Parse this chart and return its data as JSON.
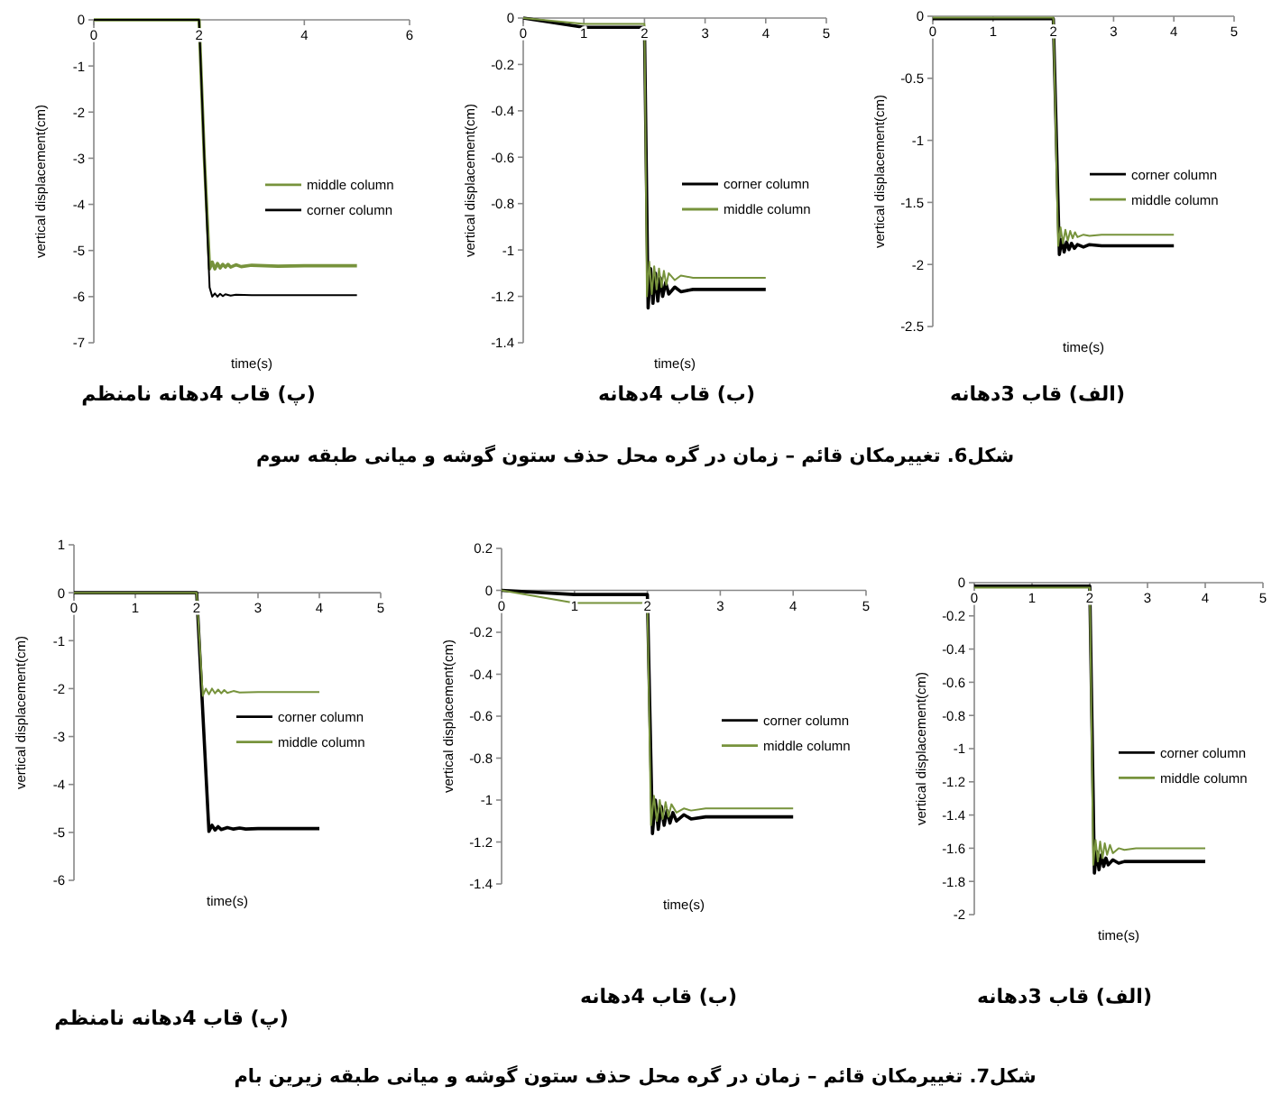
{
  "chart_data": [
    {
      "type": "line",
      "title": "(پ) قاب 4دهانه نامنظم",
      "xlabel": "time(s)",
      "ylabel": "vertical displacement(cm)",
      "xlim": [
        0,
        6
      ],
      "ylim": [
        -7,
        0
      ],
      "xticks": [
        0,
        2,
        4,
        6
      ],
      "yticks": [
        0,
        -1,
        -2,
        -3,
        -4,
        -5,
        -6,
        -7
      ],
      "legend": "right",
      "series": [
        {
          "name": "middle column",
          "color": "#77933c",
          "x": [
            0,
            2.0,
            2.1,
            2.2,
            2.25,
            2.3,
            2.35,
            2.4,
            2.45,
            2.5,
            2.55,
            2.6,
            2.7,
            2.8,
            3.0,
            3.5,
            4.0,
            5.0
          ],
          "values": [
            0,
            0,
            -3.0,
            -5.4,
            -5.25,
            -5.4,
            -5.28,
            -5.38,
            -5.3,
            -5.36,
            -5.3,
            -5.36,
            -5.31,
            -5.35,
            -5.32,
            -5.34,
            -5.33,
            -5.33
          ]
        },
        {
          "name": "corner column",
          "color": "#000000",
          "x": [
            0,
            2.0,
            2.1,
            2.2,
            2.25,
            2.3,
            2.35,
            2.4,
            2.45,
            2.5,
            2.6,
            2.7,
            3.0,
            5.0
          ],
          "values": [
            0,
            0,
            -3.0,
            -5.8,
            -6.0,
            -5.93,
            -6.0,
            -5.94,
            -5.99,
            -5.95,
            -5.98,
            -5.96,
            -5.97,
            -5.97
          ]
        }
      ]
    },
    {
      "type": "line",
      "title": "(ب) قاب 4دهانه",
      "xlabel": "time(s)",
      "ylabel": "vertical displacement(cm)",
      "xlim": [
        0,
        5
      ],
      "ylim": [
        -1.4,
        0
      ],
      "xticks": [
        0,
        1,
        2,
        3,
        4,
        5
      ],
      "yticks": [
        0,
        -0.2,
        -0.4,
        -0.6,
        -0.8,
        -1,
        -1.2,
        -1.4
      ],
      "legend": "right",
      "annotations": [
        "شکل6. تغییرمکان قائم – زمان در گره محل حذف ستون گوشه و میانی طبقه سوم"
      ],
      "series": [
        {
          "name": "corner column",
          "color": "#000000",
          "x": [
            0,
            1,
            2.0,
            2.06,
            2.1,
            2.14,
            2.18,
            2.22,
            2.26,
            2.3,
            2.35,
            2.4,
            2.5,
            2.6,
            2.8,
            4.0
          ],
          "values": [
            0,
            -0.04,
            -0.04,
            -1.25,
            -1.08,
            -1.23,
            -1.1,
            -1.22,
            -1.12,
            -1.2,
            -1.14,
            -1.19,
            -1.16,
            -1.18,
            -1.17,
            -1.17
          ]
        },
        {
          "name": "middle column",
          "color": "#77933c",
          "x": [
            0,
            1,
            2.0,
            2.04,
            2.08,
            2.12,
            2.16,
            2.2,
            2.24,
            2.28,
            2.32,
            2.36,
            2.4,
            2.5,
            2.6,
            2.8,
            4.0
          ],
          "values": [
            0,
            -0.025,
            -0.025,
            -1.2,
            -1.05,
            -1.19,
            -1.07,
            -1.17,
            -1.08,
            -1.16,
            -1.09,
            -1.15,
            -1.1,
            -1.13,
            -1.11,
            -1.12,
            -1.12
          ]
        }
      ]
    },
    {
      "type": "line",
      "title": "(الف) قاب 3دهانه",
      "xlabel": "time(s)",
      "ylabel": "vertical displacement(cm)",
      "xlim": [
        0,
        5
      ],
      "ylim": [
        -2.5,
        0
      ],
      "xticks": [
        0,
        1,
        2,
        3,
        4,
        5
      ],
      "yticks": [
        0,
        -0.5,
        -1,
        -1.5,
        -2,
        -2.5
      ],
      "legend": "right",
      "series": [
        {
          "name": "corner column",
          "color": "#000000",
          "x": [
            0,
            2.0,
            2.1,
            2.14,
            2.18,
            2.22,
            2.26,
            2.3,
            2.35,
            2.4,
            2.5,
            2.6,
            2.8,
            4.0
          ],
          "values": [
            -0.02,
            -0.02,
            -1.92,
            -1.8,
            -1.9,
            -1.82,
            -1.88,
            -1.83,
            -1.87,
            -1.84,
            -1.86,
            -1.84,
            -1.85,
            -1.85
          ]
        },
        {
          "name": "middle column",
          "color": "#77933c",
          "x": [
            0,
            2.0,
            2.08,
            2.12,
            2.16,
            2.2,
            2.24,
            2.28,
            2.32,
            2.36,
            2.4,
            2.5,
            2.6,
            2.8,
            4.0
          ],
          "values": [
            -0.01,
            -0.01,
            -1.85,
            -1.7,
            -1.83,
            -1.72,
            -1.81,
            -1.73,
            -1.79,
            -1.74,
            -1.78,
            -1.76,
            -1.77,
            -1.76,
            -1.76
          ]
        }
      ]
    },
    {
      "type": "line",
      "title": "(پ) قاب 4دهانه نامنظم",
      "xlabel": "time(s)",
      "ylabel": "vertical displacement(cm)",
      "xlim": [
        0,
        5
      ],
      "ylim": [
        -6,
        1
      ],
      "xticks": [
        0,
        1,
        2,
        3,
        4,
        5
      ],
      "yticks": [
        1,
        0,
        -1,
        -2,
        -3,
        -4,
        -5,
        -6
      ],
      "legend": "right",
      "series": [
        {
          "name": "corner column",
          "color": "#000000",
          "x": [
            0,
            2.0,
            2.1,
            2.2,
            2.25,
            2.3,
            2.35,
            2.4,
            2.5,
            2.6,
            2.7,
            2.8,
            3.0,
            4.0
          ],
          "values": [
            0,
            0,
            -2.5,
            -4.98,
            -4.85,
            -4.95,
            -4.88,
            -4.94,
            -4.9,
            -4.93,
            -4.91,
            -4.93,
            -4.92,
            -4.92
          ]
        },
        {
          "name": "middle column",
          "color": "#77933c",
          "x": [
            0,
            2.0,
            2.1,
            2.15,
            2.2,
            2.25,
            2.3,
            2.35,
            2.4,
            2.45,
            2.5,
            2.6,
            2.7,
            3.0,
            4.0
          ],
          "values": [
            0,
            0,
            -2.15,
            -2.0,
            -2.12,
            -2.0,
            -2.1,
            -2.02,
            -2.1,
            -2.03,
            -2.09,
            -2.05,
            -2.08,
            -2.07,
            -2.07
          ]
        }
      ]
    },
    {
      "type": "line",
      "title": "(ب) قاب 4دهانه",
      "xlabel": "time(s)",
      "ylabel": "vertical displacement(cm)",
      "xlim": [
        0,
        5
      ],
      "ylim": [
        -1.4,
        0.2
      ],
      "xticks": [
        0,
        1,
        2,
        3,
        4,
        5
      ],
      "yticks": [
        0.2,
        0,
        -0.2,
        -0.4,
        -0.6,
        -0.8,
        -1,
        -1.2,
        -1.4
      ],
      "legend": "right",
      "annotations": [
        "شکل7. تغییرمکان قائم – زمان در گره محل حذف ستون گوشه و میانی طبقه زیرین بام"
      ],
      "series": [
        {
          "name": "corner column",
          "color": "#000000",
          "x": [
            0,
            1,
            2.0,
            2.07,
            2.11,
            2.15,
            2.19,
            2.23,
            2.27,
            2.31,
            2.35,
            2.4,
            2.5,
            2.6,
            2.8,
            4.0
          ],
          "values": [
            0,
            -0.02,
            -0.02,
            -1.16,
            -1.0,
            -1.14,
            -1.03,
            -1.12,
            -1.05,
            -1.11,
            -1.06,
            -1.1,
            -1.07,
            -1.09,
            -1.08,
            -1.08
          ]
        },
        {
          "name": "middle column",
          "color": "#77933c",
          "x": [
            0,
            1,
            2.0,
            2.05,
            2.09,
            2.13,
            2.17,
            2.21,
            2.25,
            2.29,
            2.33,
            2.4,
            2.5,
            2.6,
            2.8,
            4.0
          ],
          "values": [
            0,
            -0.06,
            -0.06,
            -1.12,
            -0.98,
            -1.1,
            -1.0,
            -1.09,
            -1.01,
            -1.08,
            -1.02,
            -1.06,
            -1.04,
            -1.05,
            -1.04,
            -1.04
          ]
        }
      ]
    },
    {
      "type": "line",
      "title": "(الف) قاب 3دهانه",
      "xlabel": "time(s)",
      "ylabel": "vertical displacement(cm)",
      "xlim": [
        0,
        5
      ],
      "ylim": [
        -2,
        0
      ],
      "xticks": [
        0,
        1,
        2,
        3,
        4,
        5
      ],
      "yticks": [
        0,
        -0.2,
        -0.4,
        -0.6,
        -0.8,
        -1,
        -1.2,
        -1.4,
        -1.6,
        -1.8,
        -2
      ],
      "legend": "right",
      "series": [
        {
          "name": "corner column",
          "color": "#000000",
          "x": [
            0,
            2.0,
            2.08,
            2.12,
            2.16,
            2.2,
            2.24,
            2.28,
            2.32,
            2.4,
            2.5,
            2.6,
            2.8,
            4.0
          ],
          "values": [
            -0.02,
            -0.02,
            -1.75,
            -1.62,
            -1.73,
            -1.64,
            -1.71,
            -1.66,
            -1.7,
            -1.67,
            -1.69,
            -1.68,
            -1.68,
            -1.68
          ]
        },
        {
          "name": "middle column",
          "color": "#77933c",
          "x": [
            0,
            2.0,
            2.06,
            2.1,
            2.14,
            2.18,
            2.22,
            2.26,
            2.3,
            2.35,
            2.4,
            2.5,
            2.6,
            2.8,
            4.0
          ],
          "values": [
            -0.03,
            -0.03,
            -1.7,
            -1.55,
            -1.68,
            -1.56,
            -1.66,
            -1.57,
            -1.64,
            -1.58,
            -1.63,
            -1.6,
            -1.61,
            -1.6,
            -1.6
          ]
        }
      ]
    }
  ]
}
